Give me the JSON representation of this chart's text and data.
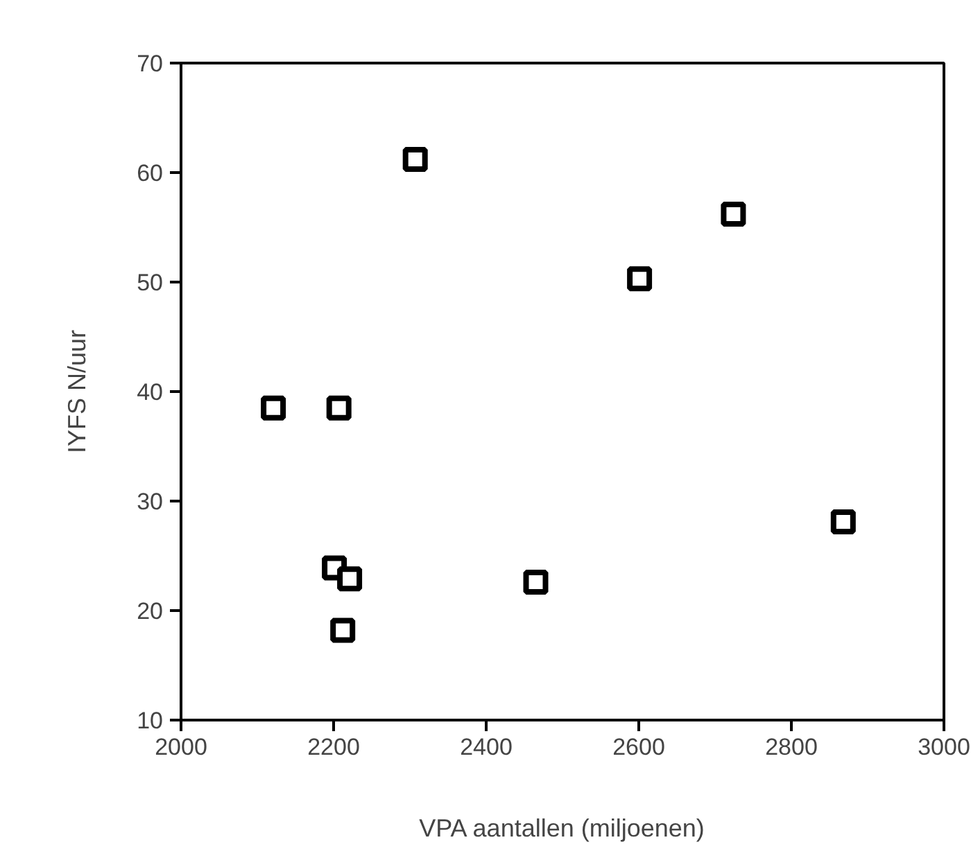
{
  "chart_data": {
    "type": "scatter",
    "xlabel": "VPA aantallen (miljoenen)",
    "ylabel": "IYFS N/uur",
    "x": [
      2121,
      2207,
      2307,
      2601,
      2724,
      2201,
      2221,
      2212,
      2465,
      2868
    ],
    "values": [
      38.5,
      38.5,
      61.2,
      50.3,
      56.2,
      23.9,
      22.9,
      18.2,
      22.6,
      28.1
    ],
    "color": "#000000",
    "marker": "square",
    "xlim": [
      2000,
      3000
    ],
    "xticks": [
      2000,
      2200,
      2400,
      2600,
      2800,
      3000
    ],
    "ylim": [
      10,
      70
    ],
    "yticks": [
      10,
      20,
      30,
      40,
      50,
      60,
      70
    ],
    "grid": false
  }
}
